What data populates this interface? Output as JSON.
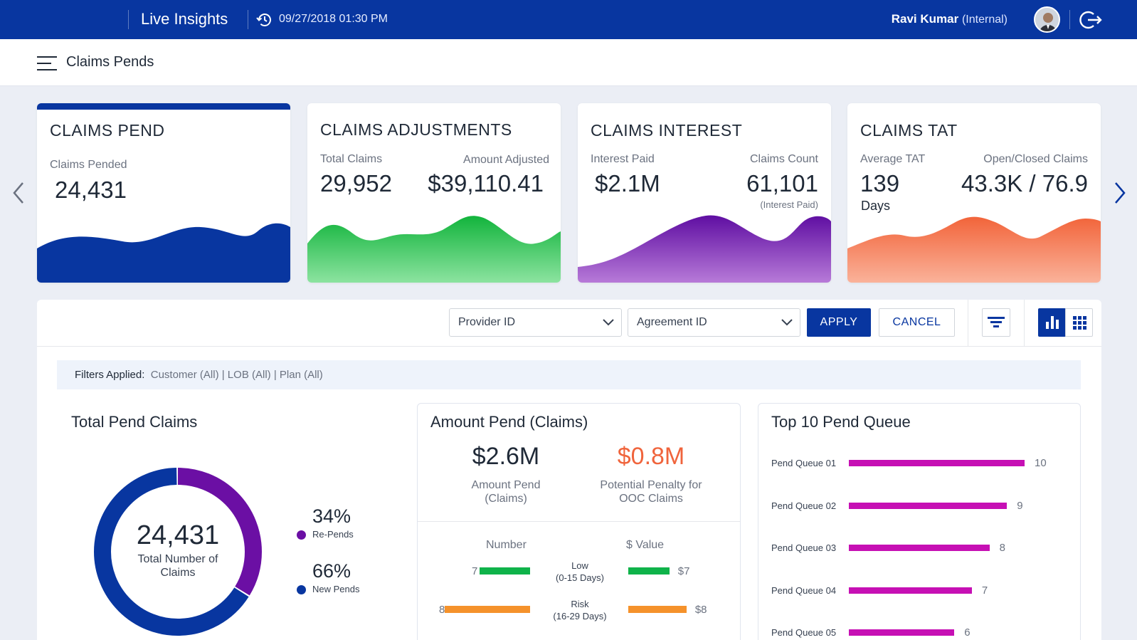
{
  "colors": {
    "brand": "#0836a0",
    "green": "#0fb34a",
    "orange": "#f5922b",
    "purple": "#6b0fa4",
    "queue": "#c610b4",
    "penalty": "#f0643c"
  },
  "header": {
    "app_title": "Live Insights",
    "datetime": "09/27/2018  01:30 PM",
    "user_name": "Ravi Kumar",
    "user_role": "(Internal)",
    "history_icon": "history-icon",
    "logout_icon": "logout-icon"
  },
  "subheader": {
    "page_title": "Claims Pends",
    "menu_icon": "hamburger-menu-icon"
  },
  "kpis": [
    {
      "title": "CLAIMS PEND",
      "label1": "Claims Pended",
      "value1": "24,431"
    },
    {
      "title": "CLAIMS ADJUSTMENTS",
      "label1": "Total Claims",
      "value1": "29,952",
      "label2": "Amount Adjusted",
      "value2": "$39,110.41"
    },
    {
      "title": "CLAIMS INTEREST",
      "label1": "Interest Paid",
      "value1": "$2.1M",
      "label2": "Claims Count",
      "value2": "61,101",
      "note2": "(Interest Paid)"
    },
    {
      "title": "CLAIMS TAT",
      "label1": "Average TAT",
      "value1": "139",
      "unit1": "Days",
      "label2": "Open/Closed Claims",
      "value2": "43.3K / 76.9"
    }
  ],
  "toolbar": {
    "provider_placeholder": "Provider ID",
    "agreement_placeholder": "Agreement ID",
    "apply_label": "APPLY",
    "cancel_label": "CANCEL"
  },
  "filters": {
    "label": "Filters Applied:",
    "value": "Customer (All) | LOB (All) | Plan (All)"
  },
  "total_pend": {
    "title": "Total Pend Claims",
    "center_value": "24,431",
    "center_label": "Total Number of Claims",
    "chart_data": {
      "type": "pie",
      "categories": [
        "Re-Pends",
        "New Pends"
      ],
      "values": [
        34,
        66
      ],
      "labels": [
        "34%",
        "66%"
      ]
    }
  },
  "amount_pend": {
    "title": "Amount Pend (Claims)",
    "amount_value": "$2.6M",
    "amount_label": "Amount Pend (Claims)",
    "penalty_value": "$0.8M",
    "penalty_label": "Potential Penalty for OOC Claims",
    "number_header": "Number",
    "value_header": "$ Value",
    "rows": [
      {
        "name": "Low",
        "range": "(0-15 Days)",
        "number": 7,
        "value": 7,
        "value_label": "$7"
      },
      {
        "name": "Risk",
        "range": "(16-29 Days)",
        "number": 8,
        "value": 8,
        "value_label": "$8"
      }
    ]
  },
  "top_queue": {
    "title": "Top 10 Pend Queue",
    "chart_data": {
      "type": "bar",
      "categories": [
        "Pend Queue 01",
        "Pend Queue 02",
        "Pend Queue 03",
        "Pend Queue 04",
        "Pend Queue 05"
      ],
      "values": [
        10,
        9,
        8,
        7,
        6
      ]
    }
  }
}
